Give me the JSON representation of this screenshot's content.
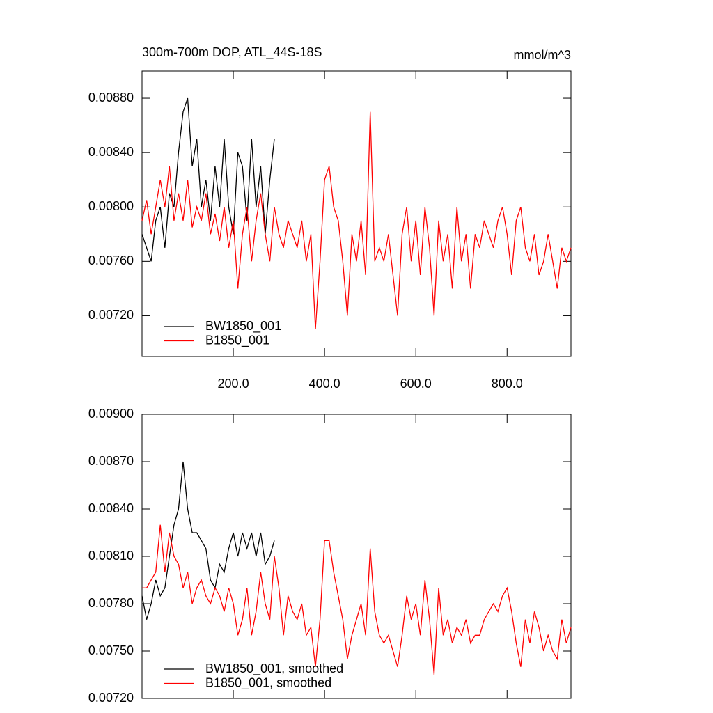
{
  "chart_data": [
    {
      "type": "line",
      "title": "300m-700m DOP, ATL_44S-18S",
      "units": "mmol/m^3",
      "xlim": [
        0,
        940
      ],
      "xticks": [
        {
          "value": 200,
          "label": "200.0"
        },
        {
          "value": 400,
          "label": "400.0"
        },
        {
          "value": 600,
          "label": "600.0"
        },
        {
          "value": 800,
          "label": "800.0"
        }
      ],
      "ylim": [
        0.0069,
        0.009
      ],
      "yticks": [
        {
          "value": 0.0072,
          "label": "0.00720"
        },
        {
          "value": 0.0076,
          "label": "0.00760"
        },
        {
          "value": 0.008,
          "label": "0.00800"
        },
        {
          "value": 0.0084,
          "label": "0.00840"
        },
        {
          "value": 0.0088,
          "label": "0.00880"
        }
      ],
      "series": [
        {
          "name": "BW1850_001",
          "color": "#000000",
          "x": [
            0,
            10,
            20,
            30,
            40,
            50,
            60,
            70,
            80,
            90,
            100,
            110,
            120,
            130,
            140,
            150,
            160,
            170,
            180,
            190,
            200,
            210,
            220,
            230,
            240,
            250,
            260,
            270,
            280,
            290
          ],
          "values": [
            0.0078,
            0.0077,
            0.0076,
            0.0079,
            0.008,
            0.0077,
            0.0081,
            0.008,
            0.0084,
            0.0087,
            0.0088,
            0.0083,
            0.0085,
            0.008,
            0.0082,
            0.0079,
            0.0083,
            0.008,
            0.0085,
            0.008,
            0.0078,
            0.0084,
            0.0083,
            0.0079,
            0.0085,
            0.008,
            0.0083,
            0.0078,
            0.0082,
            0.0085
          ]
        },
        {
          "name": "B1850_001",
          "color": "#ff0000",
          "x": [
            0,
            10,
            20,
            30,
            40,
            50,
            60,
            70,
            80,
            90,
            100,
            110,
            120,
            130,
            140,
            150,
            160,
            170,
            180,
            190,
            200,
            210,
            220,
            230,
            240,
            250,
            260,
            270,
            280,
            290,
            300,
            310,
            320,
            330,
            340,
            350,
            360,
            370,
            380,
            390,
            400,
            410,
            420,
            430,
            440,
            450,
            460,
            470,
            480,
            490,
            500,
            510,
            520,
            530,
            540,
            550,
            560,
            570,
            580,
            590,
            600,
            610,
            620,
            630,
            640,
            650,
            660,
            670,
            680,
            690,
            700,
            710,
            720,
            730,
            740,
            750,
            760,
            770,
            780,
            790,
            800,
            810,
            820,
            830,
            840,
            850,
            860,
            870,
            880,
            890,
            900,
            910,
            920,
            930,
            940
          ],
          "values": [
            0.0079,
            0.00805,
            0.0078,
            0.008,
            0.0082,
            0.008,
            0.0083,
            0.0079,
            0.0081,
            0.0079,
            0.0082,
            0.00785,
            0.008,
            0.0079,
            0.0081,
            0.0078,
            0.00795,
            0.00775,
            0.008,
            0.0077,
            0.0079,
            0.0074,
            0.0078,
            0.008,
            0.0076,
            0.0079,
            0.0081,
            0.0078,
            0.0076,
            0.008,
            0.0078,
            0.0077,
            0.0079,
            0.0078,
            0.0077,
            0.0079,
            0.0076,
            0.0078,
            0.0071,
            0.0076,
            0.0082,
            0.0083,
            0.008,
            0.0079,
            0.0076,
            0.0072,
            0.0078,
            0.0076,
            0.0079,
            0.0075,
            0.0087,
            0.0076,
            0.0077,
            0.0076,
            0.0078,
            0.0075,
            0.0072,
            0.0078,
            0.008,
            0.0076,
            0.0079,
            0.0075,
            0.008,
            0.0077,
            0.0072,
            0.0079,
            0.0076,
            0.0078,
            0.0074,
            0.008,
            0.0076,
            0.0078,
            0.0074,
            0.0078,
            0.0077,
            0.0079,
            0.0078,
            0.0077,
            0.0079,
            0.008,
            0.0078,
            0.0075,
            0.0079,
            0.008,
            0.0077,
            0.0076,
            0.0078,
            0.0075,
            0.0076,
            0.0078,
            0.0076,
            0.0074,
            0.0077,
            0.0076,
            0.0077
          ]
        }
      ]
    },
    {
      "type": "line",
      "xlim": [
        0,
        940
      ],
      "xticks": [
        200,
        400,
        600,
        800
      ],
      "ylim": [
        0.0072,
        0.009
      ],
      "yticks": [
        {
          "value": 0.0072,
          "label": "0.00720"
        },
        {
          "value": 0.0075,
          "label": "0.00750"
        },
        {
          "value": 0.0078,
          "label": "0.00780"
        },
        {
          "value": 0.0081,
          "label": "0.00810"
        },
        {
          "value": 0.0084,
          "label": "0.00840"
        },
        {
          "value": 0.0087,
          "label": "0.00870"
        },
        {
          "value": 0.009,
          "label": "0.00900"
        }
      ],
      "series": [
        {
          "name": "BW1850_001, smoothed",
          "color": "#000000",
          "x": [
            0,
            10,
            20,
            30,
            40,
            50,
            60,
            70,
            80,
            90,
            100,
            110,
            120,
            130,
            140,
            150,
            160,
            170,
            180,
            190,
            200,
            210,
            220,
            230,
            240,
            250,
            260,
            270,
            280,
            290
          ],
          "values": [
            0.00785,
            0.0077,
            0.0078,
            0.00795,
            0.00785,
            0.0079,
            0.0081,
            0.0083,
            0.0084,
            0.0087,
            0.0084,
            0.00825,
            0.00825,
            0.0082,
            0.00815,
            0.00795,
            0.0079,
            0.00805,
            0.008,
            0.00815,
            0.00825,
            0.0081,
            0.00825,
            0.00815,
            0.00825,
            0.0081,
            0.00825,
            0.00805,
            0.0081,
            0.0082
          ]
        },
        {
          "name": "B1850_001, smoothed",
          "color": "#ff0000",
          "x": [
            0,
            10,
            20,
            30,
            40,
            50,
            60,
            70,
            80,
            90,
            100,
            110,
            120,
            130,
            140,
            150,
            160,
            170,
            180,
            190,
            200,
            210,
            220,
            230,
            240,
            250,
            260,
            270,
            280,
            290,
            300,
            310,
            320,
            330,
            340,
            350,
            360,
            370,
            380,
            390,
            400,
            410,
            420,
            430,
            440,
            450,
            460,
            470,
            480,
            490,
            500,
            510,
            520,
            530,
            540,
            550,
            560,
            570,
            580,
            590,
            600,
            610,
            620,
            630,
            640,
            650,
            660,
            670,
            680,
            690,
            700,
            710,
            720,
            730,
            740,
            750,
            760,
            770,
            780,
            790,
            800,
            810,
            820,
            830,
            840,
            850,
            860,
            870,
            880,
            890,
            900,
            910,
            920,
            930,
            940
          ],
          "values": [
            0.0079,
            0.0079,
            0.00795,
            0.008,
            0.0083,
            0.008,
            0.00825,
            0.0081,
            0.00805,
            0.0079,
            0.008,
            0.0078,
            0.0079,
            0.00795,
            0.00785,
            0.0078,
            0.0079,
            0.00785,
            0.00775,
            0.0079,
            0.0078,
            0.0076,
            0.0077,
            0.0079,
            0.0076,
            0.00775,
            0.008,
            0.0078,
            0.0077,
            0.0081,
            0.0079,
            0.0076,
            0.00785,
            0.00775,
            0.0077,
            0.0078,
            0.0076,
            0.00765,
            0.0074,
            0.0077,
            0.0082,
            0.0082,
            0.008,
            0.00785,
            0.0077,
            0.00745,
            0.0076,
            0.0077,
            0.0078,
            0.0076,
            0.00815,
            0.00775,
            0.0076,
            0.00755,
            0.0076,
            0.0075,
            0.0074,
            0.0076,
            0.00785,
            0.0077,
            0.0078,
            0.0076,
            0.00795,
            0.0077,
            0.00735,
            0.0079,
            0.0076,
            0.0077,
            0.00755,
            0.00765,
            0.0076,
            0.0077,
            0.00755,
            0.0076,
            0.0076,
            0.0077,
            0.00775,
            0.0078,
            0.00775,
            0.00785,
            0.0079,
            0.00775,
            0.00755,
            0.0074,
            0.0077,
            0.00755,
            0.00775,
            0.00765,
            0.0075,
            0.0076,
            0.0075,
            0.00745,
            0.0077,
            0.00755,
            0.00765
          ]
        }
      ]
    }
  ]
}
